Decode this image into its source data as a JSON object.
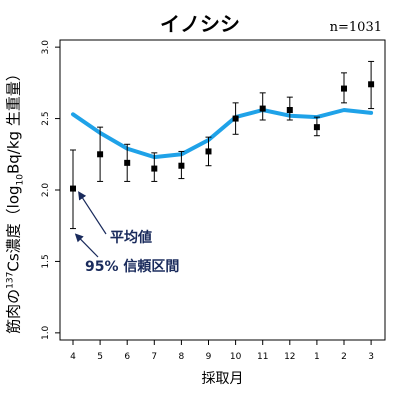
{
  "chart_data": {
    "type": "line",
    "title": "イノシシ",
    "sample_size_label": "n=1031",
    "ylabel_parts": {
      "prefix": "筋肉の",
      "isotope_mass": "137",
      "isotope_symbol": "Cs濃度（log",
      "log_base": "10",
      "suffix": "Bq/kg 生重量）"
    },
    "xlabel": "採取月",
    "categories": [
      "4",
      "5",
      "6",
      "7",
      "8",
      "9",
      "10",
      "11",
      "12",
      "1",
      "2",
      "3"
    ],
    "yticks": [
      "1.0",
      "1.5",
      "2.0",
      "2.5",
      "3.0"
    ],
    "ylim": [
      0.95,
      3.05
    ],
    "series": [
      {
        "name": "平均値",
        "marker": "square",
        "color": "#000000",
        "values": [
          2.01,
          2.25,
          2.19,
          2.15,
          2.17,
          2.27,
          2.5,
          2.57,
          2.56,
          2.44,
          2.71,
          2.74
        ],
        "ci_low": [
          1.73,
          2.06,
          2.06,
          2.06,
          2.08,
          2.17,
          2.39,
          2.49,
          2.49,
          2.38,
          2.61,
          2.57
        ],
        "ci_high": [
          2.28,
          2.44,
          2.32,
          2.26,
          2.27,
          2.37,
          2.61,
          2.68,
          2.65,
          2.51,
          2.82,
          2.9
        ]
      },
      {
        "name": "smooth",
        "color": "#1fa2e8",
        "values": [
          2.53,
          2.4,
          2.29,
          2.23,
          2.25,
          2.35,
          2.51,
          2.56,
          2.52,
          2.51,
          2.56,
          2.54
        ]
      }
    ],
    "annotations": [
      {
        "text": "平均値",
        "target": "mean"
      },
      {
        "text": "95% 信頼区間",
        "target": "ci"
      }
    ],
    "annotation_color": "#1a2b5c",
    "grid": false
  }
}
